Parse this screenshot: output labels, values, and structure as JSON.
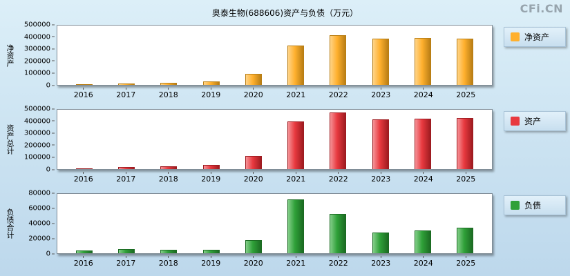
{
  "page": {
    "title": "奥泰生物(688606)资产与负债（万元）",
    "watermark": "CFi.CN"
  },
  "chart_data": [
    {
      "type": "bar",
      "name": "net-assets",
      "ylabel": "净资产",
      "legend": "净资产",
      "legend_position": "right",
      "grid": false,
      "categories": [
        "2016",
        "2017",
        "2018",
        "2019",
        "2020",
        "2021",
        "2022",
        "2023",
        "2024",
        "2025"
      ],
      "values": [
        6000,
        12000,
        18000,
        30000,
        95000,
        333000,
        416000,
        387000,
        393000,
        388000
      ],
      "ylim": [
        0,
        500000
      ],
      "yticks": [
        0,
        100000,
        200000,
        300000,
        400000,
        500000
      ],
      "color": "#FFB02E",
      "color_light": "#FFD488",
      "color_dark": "#B97E14"
    },
    {
      "type": "bar",
      "name": "total-assets",
      "ylabel": "资产总计",
      "legend": "资产",
      "legend_position": "right",
      "grid": false,
      "categories": [
        "2016",
        "2017",
        "2018",
        "2019",
        "2020",
        "2021",
        "2022",
        "2023",
        "2024",
        "2025"
      ],
      "values": [
        6000,
        18000,
        24000,
        36000,
        113000,
        399000,
        476000,
        417000,
        423000,
        429000
      ],
      "ylim": [
        0,
        500000
      ],
      "yticks": [
        0,
        100000,
        200000,
        300000,
        400000,
        500000
      ],
      "color": "#E8393F",
      "color_light": "#F59297",
      "color_dark": "#9E1B20"
    },
    {
      "type": "bar",
      "name": "liabilities",
      "ylabel": "负债合计",
      "legend": "负债",
      "legend_position": "right",
      "grid": false,
      "categories": [
        "2016",
        "2017",
        "2018",
        "2019",
        "2020",
        "2021",
        "2022",
        "2023",
        "2024",
        "2025"
      ],
      "values": [
        4000,
        6000,
        5000,
        5000,
        18000,
        73000,
        53000,
        28000,
        31000,
        34000
      ],
      "ylim": [
        0,
        80000
      ],
      "yticks": [
        0,
        20000,
        40000,
        60000,
        80000
      ],
      "color": "#2FA038",
      "color_light": "#83CE89",
      "color_dark": "#1B6B22"
    }
  ]
}
